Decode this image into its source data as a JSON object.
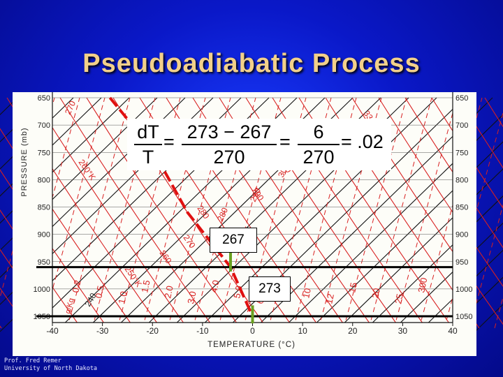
{
  "slide": {
    "title": "Pseudoadiabatic Process",
    "credit_line1": "Prof. Fred Remer",
    "credit_line2": "University of North Dakota"
  },
  "chart_data": {
    "type": "diagram",
    "xlabel": "TEMPERATURE (°C)",
    "ylabel": "PRESSURE (mb)",
    "x_ticks": [
      -40,
      -30,
      -20,
      -10,
      0,
      10,
      20,
      30,
      40
    ],
    "y_ticks": [
      650,
      700,
      750,
      800,
      850,
      900,
      950,
      1000,
      1050
    ],
    "xlim": [
      -40,
      40
    ],
    "ylim": [
      1060,
      650
    ],
    "dry_adiabat_labels": [
      "270",
      "280",
      "290",
      "300",
      "310"
    ],
    "moist_adiabat_labels": [
      "250°K",
      "260°K",
      "260",
      "270",
      "280",
      "290",
      "300",
      "33"
    ],
    "mixing_ratio_labels": [
      "0.2",
      "0.5",
      "1.0",
      "1.5",
      "2.0",
      "3.0",
      "4.0",
      "5.0",
      "6.0",
      "8.0",
      "10",
      "12",
      "15",
      "20",
      "25",
      "300"
    ],
    "extra_labels": [
      "240",
      "g/Kg"
    ],
    "horizontal_lines_mb": [
      960,
      1050
    ],
    "green_marks": [
      {
        "x": -4.4,
        "p_top": 918,
        "p_bottom": 968
      },
      {
        "x": 0,
        "p_top": 1030,
        "p_bottom": 1063
      }
    ],
    "highlight_path": [
      {
        "x": -28.5,
        "p": 650
      },
      {
        "x": -20,
        "p": 745
      },
      {
        "x": -13,
        "p": 860
      },
      {
        "x": -4.4,
        "p": 960
      },
      {
        "x": 0,
        "p": 1050
      }
    ],
    "annotations": {
      "upper_temp": "267",
      "lower_temp": "273"
    }
  },
  "formula": {
    "lhs_num": "dT",
    "lhs_den": "T",
    "eq": "=",
    "mid_num": "273 − 267",
    "mid_den": "270",
    "right_num": "6",
    "right_den": "270",
    "result": "= .02"
  },
  "colors": {
    "title": "#f2d08a",
    "diagram_red": "#d82020",
    "highlight_red": "#e01010",
    "marker_green": "#6aa020"
  }
}
